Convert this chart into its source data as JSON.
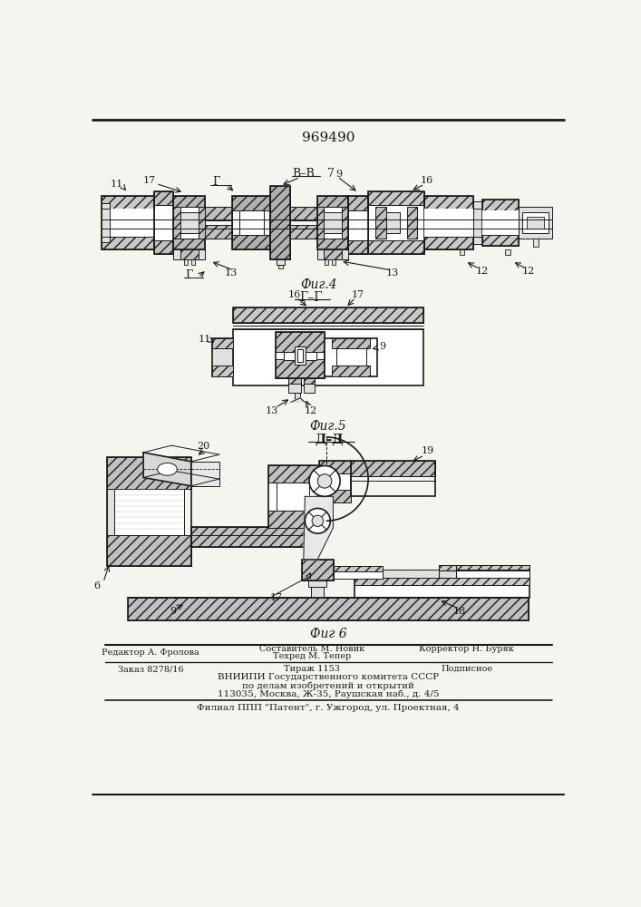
{
  "patent_number": "969490",
  "bg": "#f5f5f0",
  "lc": "#1a1a1a",
  "fig4_label": "Фиг.4",
  "fig5_label": "Фиг.5",
  "fig6_label": "Фиг 6",
  "section_bv": "В–В",
  "section_gg": "Г–Г",
  "section_dd": "Д–Д",
  "footer": {
    "line1_left": "Редактор А. Фролова",
    "line1_center": "Составитель М. Новик",
    "line1_right": "Корректор Н. Буряк",
    "line2_center": "Техред М. Тепер",
    "order": "Заказ 8278/16",
    "tirazh": "Тираж 1153",
    "podpisnoe": "Подписное",
    "vniipи": "ВНИИПИ Государственного комитета СССР",
    "po_delam": "по делам изобретений и открытий",
    "address": "113035, Москва, Ж-35, Раушская наб., д. 4/5",
    "filial": "Филиал ППП \"Патент\", г. Ужгород, ул. Проектная, 4"
  }
}
